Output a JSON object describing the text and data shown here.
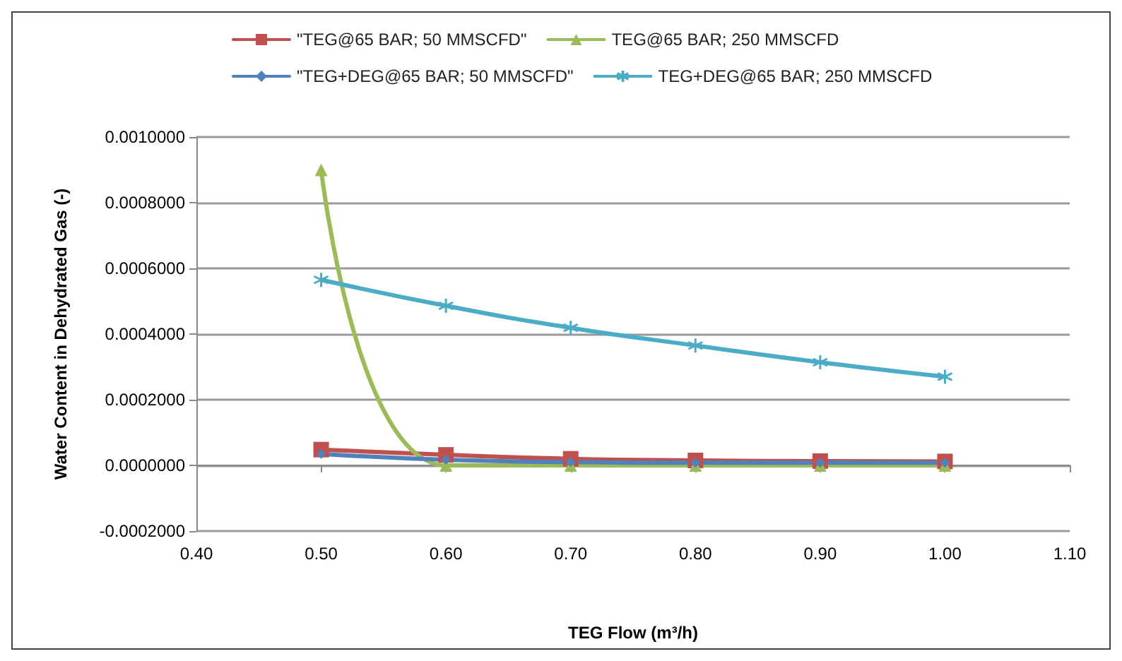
{
  "chart_data": {
    "type": "line",
    "xlabel": "TEG Flow (m³/h)",
    "ylabel": "Water Content in Dehydrated Gas (-)",
    "x": [
      0.5,
      0.6,
      0.7,
      0.8,
      0.9,
      1.0
    ],
    "series": [
      {
        "name": "\"TEG@65 BAR; 50 MMSCFD\"",
        "color": "#c0504d",
        "marker": "square",
        "values": [
          4.8e-05,
          3.2e-05,
          2e-05,
          1.5e-05,
          1.3e-05,
          1.2e-05
        ]
      },
      {
        "name": "TEG@65 BAR; 250 MMSCFD",
        "color": "#9bbb59",
        "marker": "triangle",
        "values": [
          0.0009,
          0,
          0,
          0,
          0,
          0
        ]
      },
      {
        "name": "\"TEG+DEG@65 BAR; 50 MMSCFD\"",
        "color": "#4f81bd",
        "marker": "diamond",
        "values": [
          3.5e-05,
          1.7e-05,
          1e-05,
          8e-06,
          8e-06,
          8e-06
        ]
      },
      {
        "name": "TEG+DEG@65 BAR; 250 MMSCFD",
        "color": "#4bacc6",
        "marker": "cross",
        "values": [
          0.000565,
          0.000486,
          0.000419,
          0.000365,
          0.000314,
          0.00027
        ]
      }
    ],
    "xlim": [
      0.4,
      1.1
    ],
    "xticks": [
      {
        "value": 0.4,
        "label": "0.40"
      },
      {
        "value": 0.5,
        "label": "0.50"
      },
      {
        "value": 0.6,
        "label": "0.60"
      },
      {
        "value": 0.7,
        "label": "0.70"
      },
      {
        "value": 0.8,
        "label": "0.80"
      },
      {
        "value": 0.9,
        "label": "0.90"
      },
      {
        "value": 1.0,
        "label": "1.00"
      },
      {
        "value": 1.1,
        "label": "1.10"
      }
    ],
    "ylim": [
      -0.0002,
      0.001
    ],
    "yticks": [
      {
        "value": -0.0002,
        "label": "-0.0002000"
      },
      {
        "value": 0,
        "label": "0.0000000"
      },
      {
        "value": 0.0002,
        "label": "0.0002000"
      },
      {
        "value": 0.0004,
        "label": "0.0004000"
      },
      {
        "value": 0.0006,
        "label": "0.0006000"
      },
      {
        "value": 0.0008,
        "label": "0.0008000"
      },
      {
        "value": 0.001,
        "label": "0.0010000"
      }
    ],
    "grid": "y",
    "legend": "top",
    "line_style": "solid"
  }
}
